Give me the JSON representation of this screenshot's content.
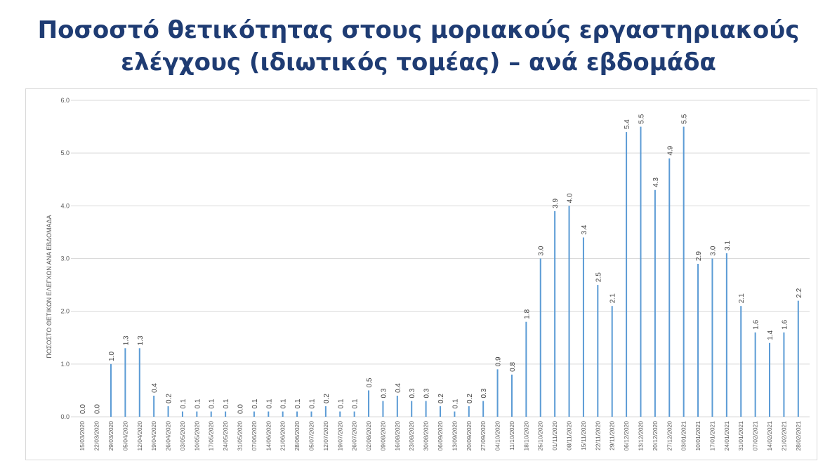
{
  "title_lines": [
    "Ποσοστό θετικότητας στους μοριακούς εργαστηριακούς",
    "ελέγχους (ιδιωτικός τομέας) – ανά εβδομάδα"
  ],
  "colors": {
    "bar": "#5b9bd5",
    "grid": "#d9d9d9",
    "title": "#1f3c73",
    "text": "#595959"
  },
  "chart_data": {
    "type": "bar",
    "title": "Ποσοστό θετικότητας στους μοριακούς εργαστηριακούς ελέγχους (ιδιωτικός τομέας) – ανά εβδομάδα",
    "xlabel": "",
    "ylabel": "ΠΟΣΟΣΤΟ ΘΕΤΙΚΩΝ ΕΛΕΓΧΩΝ ΑΝΑ ΕΒΔΟΜΑΔΑ",
    "ylim": [
      0,
      6
    ],
    "yticks": [
      "0.0",
      "1.0",
      "2.0",
      "3.0",
      "4.0",
      "5.0",
      "6.0"
    ],
    "grid": true,
    "categories": [
      "15/03/2020",
      "22/03/2020",
      "29/03/2020",
      "05/04/2020",
      "12/04/2020",
      "19/04/2020",
      "26/04/2020",
      "03/05/2020",
      "10/05/2020",
      "17/05/2020",
      "24/05/2020",
      "31/05/2020",
      "07/06/2020",
      "14/06/2020",
      "21/06/2020",
      "28/06/2020",
      "05/07/2020",
      "12/07/2020",
      "19/07/2020",
      "26/07/2020",
      "02/08/2020",
      "09/08/2020",
      "16/08/2020",
      "23/08/2020",
      "30/08/2020",
      "06/09/2020",
      "13/09/2020",
      "20/09/2020",
      "27/09/2020",
      "04/10/2020",
      "11/10/2020",
      "18/10/2020",
      "25/10/2020",
      "01/11/2020",
      "08/11/2020",
      "15/11/2020",
      "22/11/2020",
      "29/11/2020",
      "06/12/2020",
      "13/12/2020",
      "20/12/2020",
      "27/12/2020",
      "03/01/2021",
      "10/01/2021",
      "17/01/2021",
      "24/01/2021",
      "31/01/2021",
      "07/02/2021",
      "14/02/2021",
      "21/02/2021",
      "28/02/2021"
    ],
    "values": [
      0.0,
      0.0,
      1.0,
      1.3,
      1.3,
      0.4,
      0.2,
      0.1,
      0.1,
      0.1,
      0.1,
      0.0,
      0.1,
      0.1,
      0.1,
      0.1,
      0.1,
      0.2,
      0.1,
      0.1,
      0.5,
      0.3,
      0.4,
      0.3,
      0.3,
      0.2,
      0.1,
      0.2,
      0.3,
      0.9,
      0.8,
      1.8,
      3.0,
      3.9,
      4.0,
      3.4,
      2.5,
      2.1,
      5.4,
      5.5,
      4.3,
      4.9,
      5.5,
      2.9,
      3.0,
      3.1,
      2.1,
      1.6,
      1.4,
      1.6,
      2.2
    ],
    "labels": [
      "0.0",
      "0.0",
      "1.0",
      "1.3",
      "1.3",
      "0.4",
      "0.2",
      "0.1",
      "0.1",
      "0.1",
      "0.1",
      "0.0",
      "0.1",
      "0.1",
      "0.1",
      "0.1",
      "0.1",
      "0.2",
      "0.1",
      "0.1",
      "0.5",
      "0.3",
      "0.4",
      "0.3",
      "0.3",
      "0.2",
      "0.1",
      "0.2",
      "0.3",
      "0.9",
      "0.8",
      "1.8",
      "3.0",
      "3.9",
      "4.0",
      "3.4",
      "2.5",
      "2.1",
      "5.4",
      "5.5",
      "4.3",
      "4.9",
      "5.5",
      "2.9",
      "3.0",
      "3.1",
      "2.1",
      "1.6",
      "1.4",
      "1.6",
      "2.2"
    ]
  }
}
